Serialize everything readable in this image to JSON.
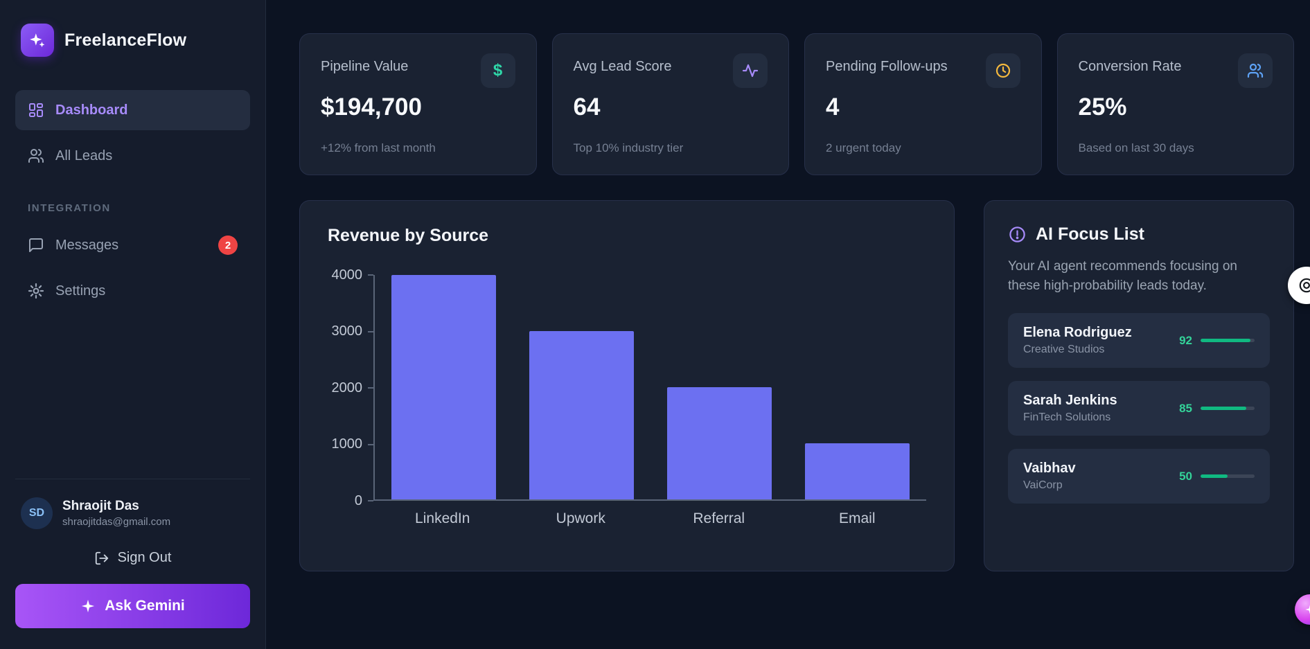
{
  "app": {
    "name": "FreelanceFlow"
  },
  "sidebar": {
    "nav": [
      {
        "label": "Dashboard",
        "active": true
      },
      {
        "label": "All Leads",
        "active": false
      }
    ],
    "section_label": "INTEGRATION",
    "integration": [
      {
        "label": "Messages",
        "badge": "2"
      },
      {
        "label": "Settings",
        "badge": ""
      }
    ],
    "user": {
      "initials": "SD",
      "name": "Shraojit Das",
      "email": "shraojitdas@gmail.com"
    },
    "sign_out": "Sign Out",
    "ask_gemini": "Ask Gemini"
  },
  "stats": {
    "cards": [
      {
        "title": "Pipeline Value",
        "value": "$194,700",
        "caption": "+12% from last month",
        "icon": "dollar-icon",
        "icon_glyph": "$",
        "accent": "#2fd6a8"
      },
      {
        "title": "Avg Lead Score",
        "value": "64",
        "caption": "Top 10% industry tier",
        "icon": "activity-icon",
        "accent": "#a78bfa"
      },
      {
        "title": "Pending Follow-ups",
        "value": "4",
        "caption": "2 urgent today",
        "icon": "clock-icon",
        "accent": "#f5b93e"
      },
      {
        "title": "Conversion Rate",
        "value": "25%",
        "caption": "Based on last 30 days",
        "icon": "users-icon",
        "accent": "#5ea3f7"
      }
    ]
  },
  "chart_data": {
    "type": "bar",
    "title": "Revenue by Source",
    "categories": [
      "LinkedIn",
      "Upwork",
      "Referral",
      "Email"
    ],
    "values": [
      4000,
      3000,
      2000,
      1000
    ],
    "xlabel": "",
    "ylabel": "",
    "ylim": [
      0,
      4000
    ],
    "yticks": [
      0,
      1000,
      2000,
      3000,
      4000
    ],
    "grid": false,
    "legend": "none",
    "bar_color": "#6c70f1"
  },
  "focus": {
    "title": "AI Focus List",
    "subtitle": "Your AI agent recommends focusing on these high-probability leads today.",
    "items": [
      {
        "name": "Elena Rodriguez",
        "company": "Creative Studios",
        "score": 92
      },
      {
        "name": "Sarah Jenkins",
        "company": "FinTech Solutions",
        "score": 85
      },
      {
        "name": "Vaibhav",
        "company": "VaiCorp",
        "score": 50
      }
    ]
  }
}
